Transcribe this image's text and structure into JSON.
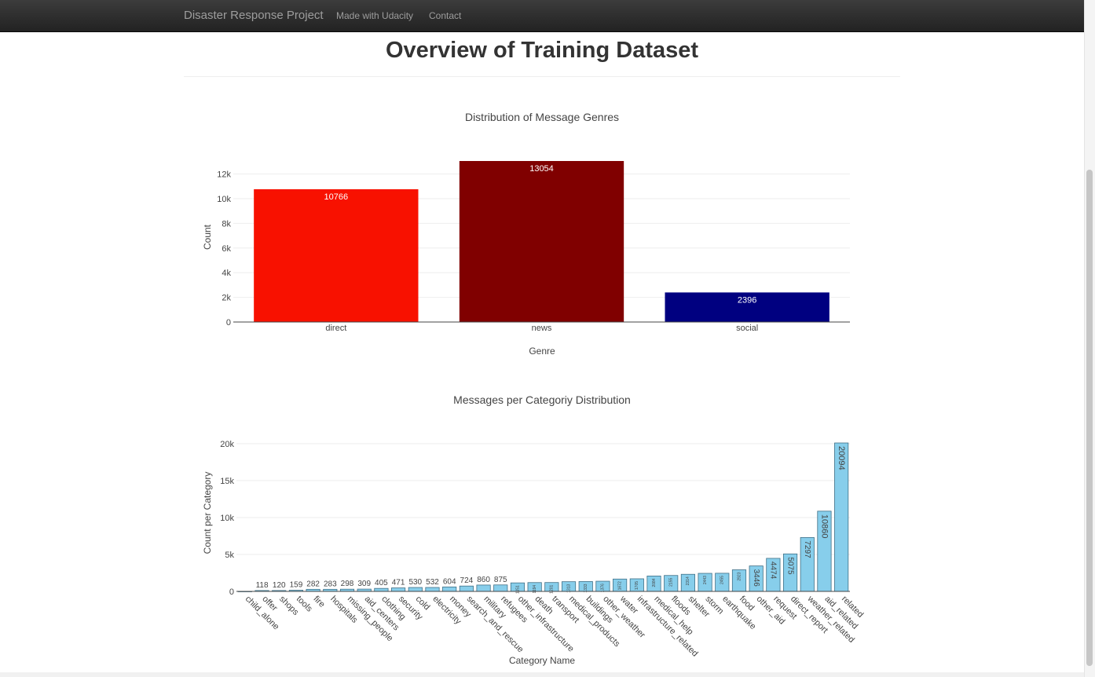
{
  "navbar": {
    "brand": "Disaster Response Project",
    "links": [
      "Made with Udacity",
      "Contact"
    ]
  },
  "page": {
    "title": "Overview of Training Dataset"
  },
  "chart_data": [
    {
      "type": "bar",
      "title": "Distribution of Message Genres",
      "xlabel": "Genre",
      "ylabel": "Count",
      "categories": [
        "direct",
        "news",
        "social"
      ],
      "values": [
        10766,
        13054,
        2396
      ],
      "value_labels": [
        "10766",
        "13054",
        "2396"
      ],
      "colors": [
        "#f81100",
        "#800000",
        "#000080"
      ],
      "ylim": [
        0,
        13054
      ],
      "yticks": [
        0,
        2000,
        4000,
        6000,
        8000,
        10000,
        12000
      ],
      "ytick_labels": [
        "0",
        "2k",
        "4k",
        "6k",
        "8k",
        "10k",
        "12k"
      ],
      "grid": true,
      "legend": "none"
    },
    {
      "type": "bar",
      "title": "Messages per Categoriy Distribution",
      "xlabel": "Category Name",
      "ylabel": "Count per Category",
      "categories": [
        "child_alone",
        "offer",
        "shops",
        "tools",
        "fire",
        "hospitals",
        "missing_people",
        "aid_centers",
        "clothing",
        "security",
        "cold",
        "electricity",
        "money",
        "search_and_rescue",
        "military",
        "refugees",
        "other_infrastructure",
        "death",
        "transport",
        "medical_products",
        "buildings",
        "other_weather",
        "water",
        "infrastructure_related",
        "medical_help",
        "floods",
        "shelter",
        "storm",
        "earthquake",
        "food",
        "other_aid",
        "request",
        "direct_report",
        "weather_related",
        "aid_related",
        "related"
      ],
      "values": [
        0,
        118,
        120,
        159,
        282,
        283,
        298,
        309,
        405,
        471,
        530,
        532,
        604,
        724,
        860,
        875,
        1151,
        1194,
        1201,
        1313,
        1333,
        1376,
        1672,
        1705,
        2084,
        2155,
        2314,
        2443,
        2455,
        2923,
        3446,
        4474,
        5075,
        7297,
        10860,
        20094
      ],
      "value_labels": [
        "",
        "118",
        "120",
        "159",
        "282",
        "283",
        "298",
        "309",
        "405",
        "471",
        "530",
        "532",
        "604",
        "724",
        "860",
        "875",
        "1151",
        "1194",
        "1201",
        "1313",
        "1333",
        "1376",
        "1672",
        "1705",
        "2084",
        "2155",
        "2314",
        "2443",
        "2455",
        "2923",
        "3446",
        "4474",
        "5075",
        "7297",
        "10860",
        "20094"
      ],
      "color": "#87ceeb",
      "ylim": [
        0,
        20094
      ],
      "yticks": [
        0,
        5000,
        10000,
        15000,
        20000
      ],
      "ytick_labels": [
        "0",
        "5k",
        "10k",
        "15k",
        "20k"
      ],
      "grid": true,
      "legend": "none"
    }
  ]
}
